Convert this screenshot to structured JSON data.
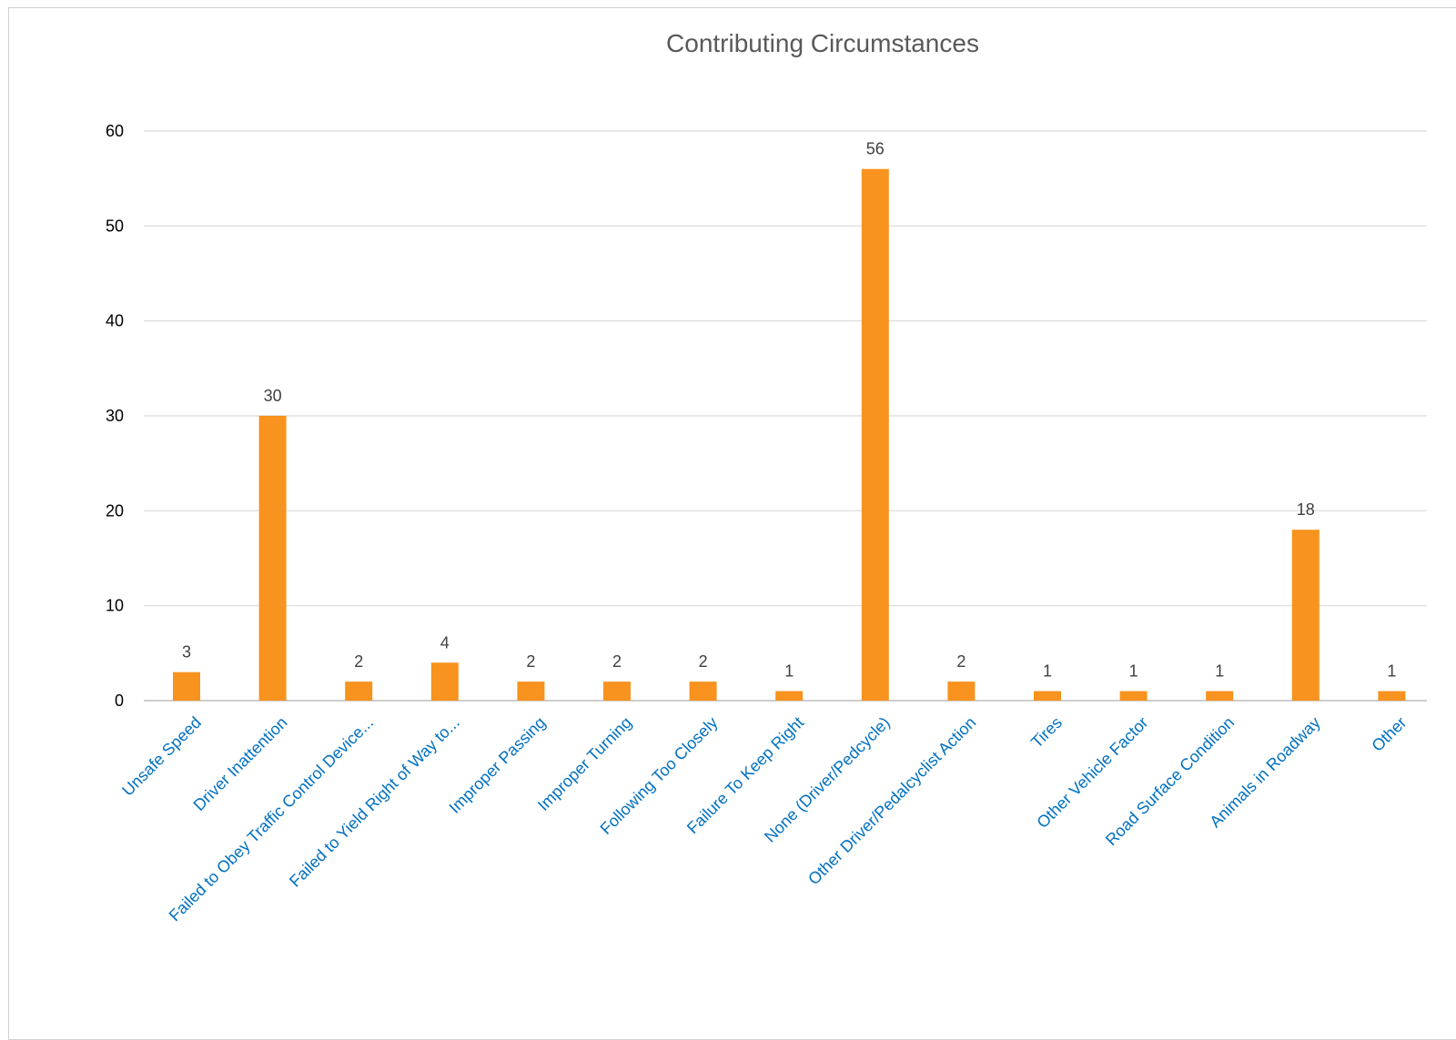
{
  "chart_data": {
    "type": "bar",
    "title": "Contributing Circumstances",
    "xlabel": "",
    "ylabel": "",
    "ylim": [
      0,
      60
    ],
    "yticks": [
      0,
      10,
      20,
      30,
      40,
      50,
      60
    ],
    "grid": true,
    "legend": "none",
    "categories": [
      "Unsafe Speed",
      "Driver Inattention",
      "Failed to Obey Traffic Control Device...",
      "Failed to Yield Right of Way to...",
      "Improper Passing",
      "Improper Turning",
      "Following Too Closely",
      "Failure To Keep Right",
      "None (Driver/Pedcycle)",
      "Other Driver/Pedalcyclist Action",
      "Tires",
      "Other Vehicle Factor",
      "Road Surface Condition",
      "Animals in Roadway",
      "Other"
    ],
    "values": [
      3,
      30,
      2,
      4,
      2,
      2,
      2,
      1,
      56,
      2,
      1,
      1,
      1,
      18,
      1
    ],
    "colors": {
      "bar": "#f7931e",
      "category_label": "#0070c0",
      "grid": "#d9d9d9"
    }
  }
}
